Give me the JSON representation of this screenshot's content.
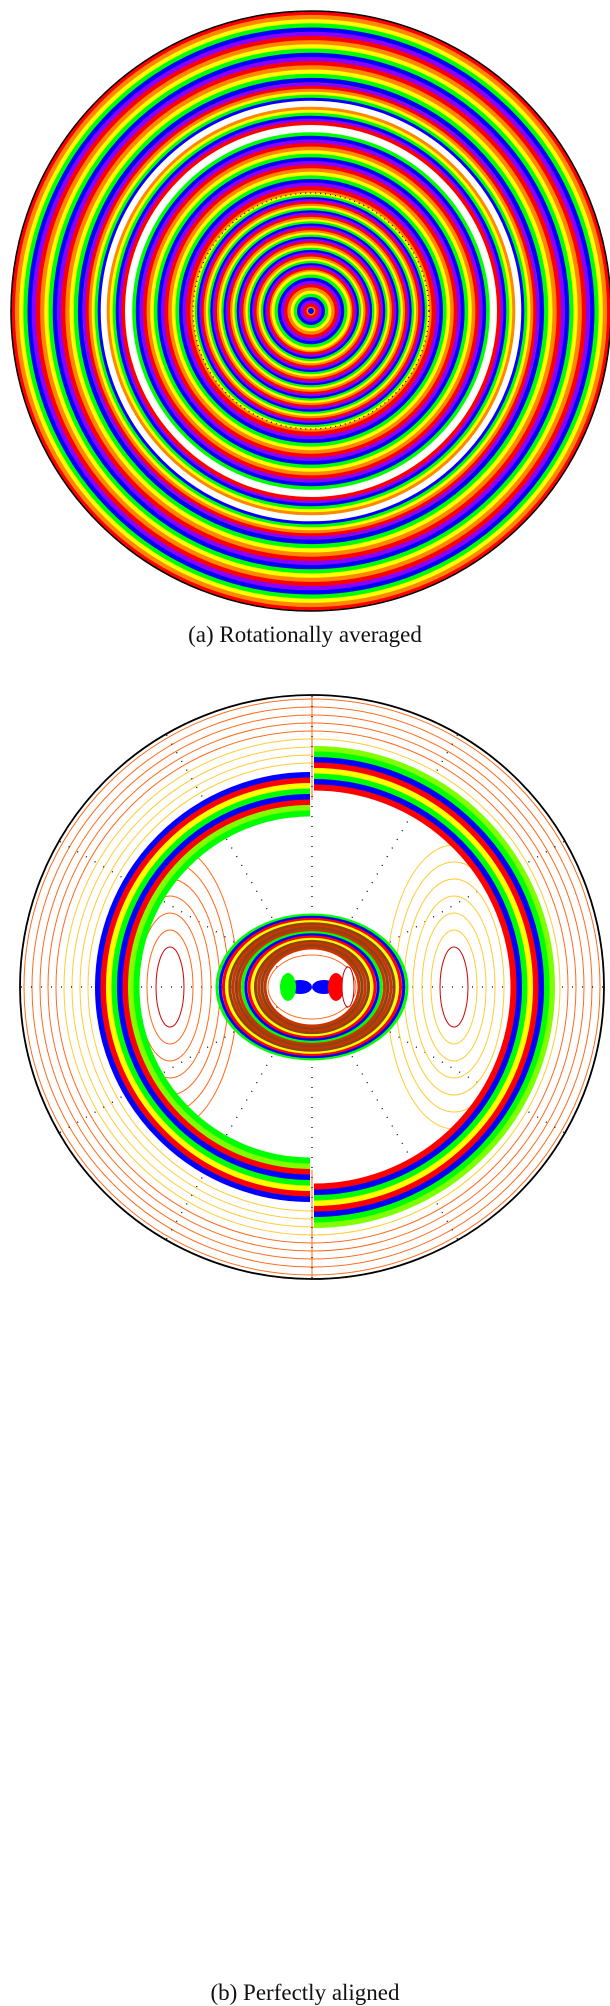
{
  "panel_a": {
    "caption": "(a) Rotationally averaged"
  },
  "panel_b": {
    "caption": "(b) Perfectly aligned"
  },
  "colors": {
    "palette": [
      "#ff0000",
      "#ff8800",
      "#ffff00",
      "#00ff00",
      "#0000ff",
      "#8800ff"
    ],
    "contour_thin": "#ff6a1a",
    "contour_light": "#ffee66",
    "boundary": "#000000"
  }
}
